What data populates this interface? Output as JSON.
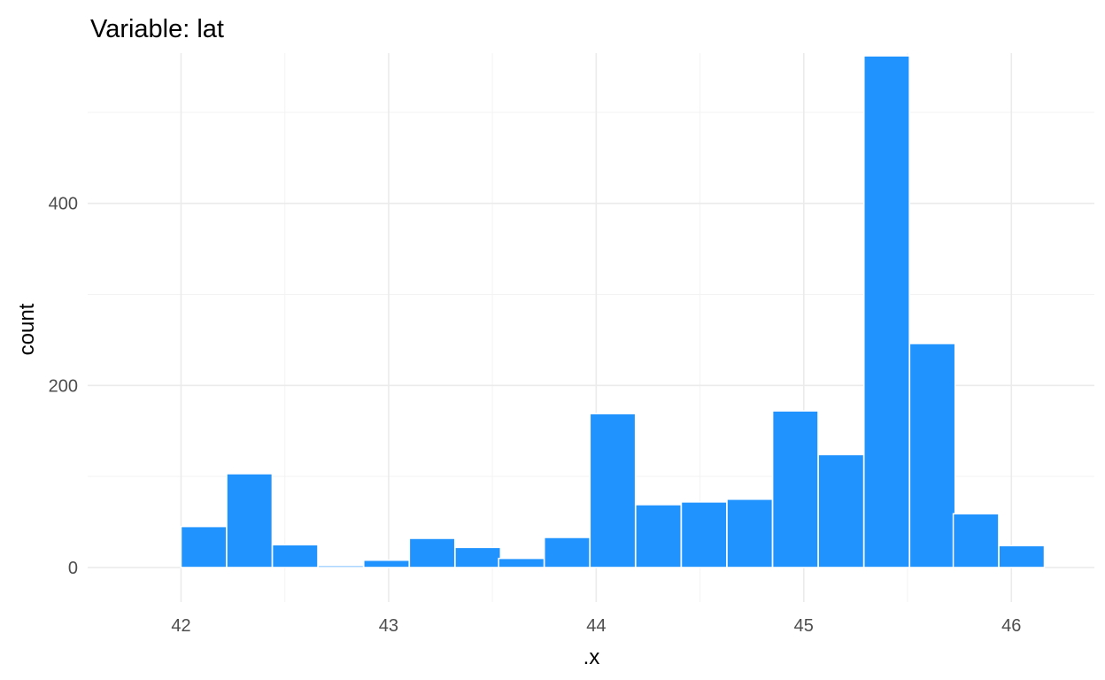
{
  "chart_data": {
    "type": "bar",
    "title": "Variable: lat",
    "xlabel": ".x",
    "ylabel": "count",
    "xlim": [
      41.55,
      46.4
    ],
    "ylim": [
      -38,
      565
    ],
    "x_ticks": [
      42,
      43,
      44,
      45,
      46
    ],
    "x_tick_labels": [
      "42",
      "43",
      "44",
      "45",
      "46"
    ],
    "y_ticks": [
      0,
      200,
      400
    ],
    "y_tick_labels": [
      "0",
      "200",
      "400"
    ],
    "bin_width": 0.219,
    "bins": [
      {
        "start": 42.0,
        "count": 45
      },
      {
        "start": 42.22,
        "count": 103
      },
      {
        "start": 42.44,
        "count": 25
      },
      {
        "start": 42.66,
        "count": 2
      },
      {
        "start": 42.88,
        "count": 8
      },
      {
        "start": 43.1,
        "count": 32
      },
      {
        "start": 43.32,
        "count": 22
      },
      {
        "start": 43.53,
        "count": 10
      },
      {
        "start": 43.75,
        "count": 33
      },
      {
        "start": 43.97,
        "count": 169
      },
      {
        "start": 44.19,
        "count": 69
      },
      {
        "start": 44.41,
        "count": 72
      },
      {
        "start": 44.63,
        "count": 75
      },
      {
        "start": 44.85,
        "count": 172
      },
      {
        "start": 45.07,
        "count": 124
      },
      {
        "start": 45.29,
        "count": 562
      },
      {
        "start": 45.51,
        "count": 246
      },
      {
        "start": 45.72,
        "count": 59
      },
      {
        "start": 45.94,
        "count": 24
      }
    ],
    "bar_color": "#2093ff",
    "bar_outline": "#ffffff",
    "grid": true
  }
}
